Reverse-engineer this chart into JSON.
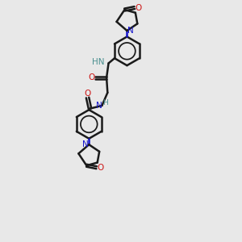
{
  "bg_color": "#e8e8e8",
  "bond_color": "#1a1a1a",
  "nitrogen_color": "#1414cc",
  "oxygen_color": "#cc1414",
  "hydrogen_color": "#4a8f8f",
  "line_width": 1.8,
  "figsize": [
    3.0,
    3.0
  ],
  "dpi": 100,
  "xlim": [
    -2.5,
    3.5
  ],
  "ylim": [
    -9.0,
    3.0
  ]
}
